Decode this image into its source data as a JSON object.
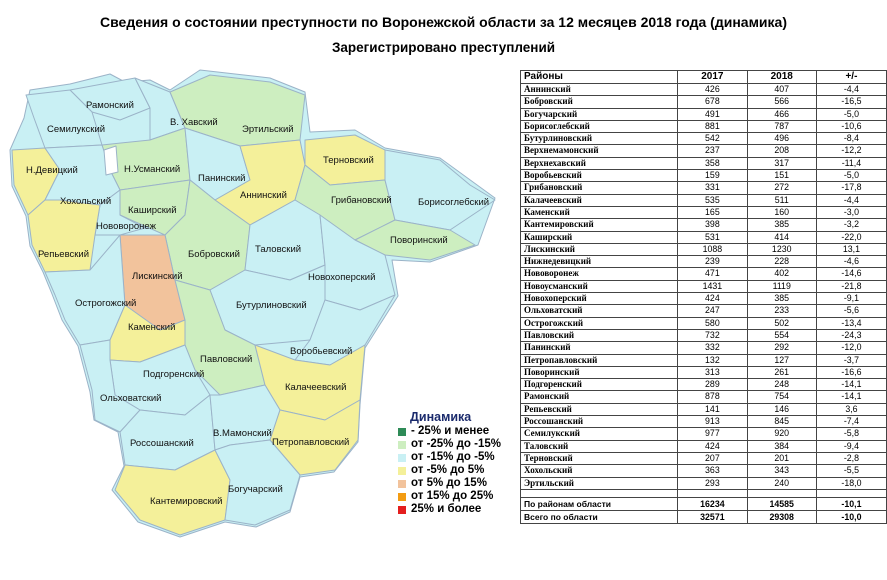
{
  "title": "Сведения о состоянии преступности по Воронежской области  за 12 месяцев 2018 года (динамика)",
  "subtitle": "Зарегистрировано преступлений",
  "colors": {
    "dark_green": "#2e8b57",
    "light_green": "#cdeec0",
    "light_blue": "#c9f0f4",
    "yellow": "#f4f09a",
    "peach": "#f2c39c",
    "orange": "#f39c12",
    "red": "#e41e1e",
    "white": "#ffffff",
    "border": "#9bb3c8"
  },
  "map": {
    "districts": [
      {
        "name": "Рамонский",
        "category": "light_blue"
      },
      {
        "name": "Семилукский",
        "category": "light_blue"
      },
      {
        "name": "В. Хавский",
        "category": "light_blue"
      },
      {
        "name": "Эртильский",
        "category": "light_green"
      },
      {
        "name": "Н.Девицкий",
        "category": "yellow"
      },
      {
        "name": "Н.Усманский",
        "category": "light_green"
      },
      {
        "name": "Терновский",
        "category": "yellow"
      },
      {
        "name": "Панинский",
        "category": "light_blue"
      },
      {
        "name": "Хохольский",
        "category": "light_blue"
      },
      {
        "name": "Аннинский",
        "category": "yellow"
      },
      {
        "name": "Грибановский",
        "category": "light_green"
      },
      {
        "name": "Борисоглебский",
        "category": "light_blue"
      },
      {
        "name": "Каширский",
        "category": "light_green"
      },
      {
        "name": "Нововоронеж",
        "category": "light_blue"
      },
      {
        "name": "Репьевский",
        "category": "yellow"
      },
      {
        "name": "Бобровский",
        "category": "light_green"
      },
      {
        "name": "Таловский",
        "category": "light_blue"
      },
      {
        "name": "Поворинский",
        "category": "light_green"
      },
      {
        "name": "Лискинский",
        "category": "peach"
      },
      {
        "name": "Новохоперский",
        "category": "light_blue"
      },
      {
        "name": "Острогожский",
        "category": "light_blue"
      },
      {
        "name": "Бутурлиновский",
        "category": "light_blue"
      },
      {
        "name": "Каменский",
        "category": "yellow"
      },
      {
        "name": "Павловский",
        "category": "light_green"
      },
      {
        "name": "Воробьевский",
        "category": "light_blue"
      },
      {
        "name": "Подгоренский",
        "category": "light_blue"
      },
      {
        "name": "Ольховатский",
        "category": "light_blue"
      },
      {
        "name": "Калачеевский",
        "category": "yellow"
      },
      {
        "name": "Россошанский",
        "category": "light_blue"
      },
      {
        "name": "В.Мамонский",
        "category": "light_blue"
      },
      {
        "name": "Петропавловский",
        "category": "yellow"
      },
      {
        "name": "Кантемировский",
        "category": "yellow"
      },
      {
        "name": "Богучарский",
        "category": "light_blue"
      }
    ]
  },
  "legend": {
    "title": "Динамика",
    "items": [
      {
        "label": "- 25% и менее",
        "color": "#2e8b57"
      },
      {
        "label": "от -25% до -15%",
        "color": "#cdeec0"
      },
      {
        "label": "от -15% до -5%",
        "color": "#c9f0f4"
      },
      {
        "label": "от -5% до 5%",
        "color": "#f4f09a"
      },
      {
        "label": "от 5% до 15%",
        "color": "#f2c39c"
      },
      {
        "label": "от 15% до 25%",
        "color": "#f39c12"
      },
      {
        "label": "25% и более",
        "color": "#e41e1e"
      }
    ]
  },
  "table": {
    "headers": [
      "Районы",
      "2017",
      "2018",
      "+/-"
    ],
    "rows": [
      [
        "Аннинский",
        "426",
        "407",
        "-4,4"
      ],
      [
        "Бобровский",
        "678",
        "566",
        "-16,5"
      ],
      [
        "Богучарский",
        "491",
        "466",
        "-5,0"
      ],
      [
        "Борисоглебский",
        "881",
        "787",
        "-10,6"
      ],
      [
        "Бутурлиновский",
        "542",
        "496",
        "-8,4"
      ],
      [
        "Верхнемамонский",
        "237",
        "208",
        "-12,2"
      ],
      [
        "Верхнехавский",
        "358",
        "317",
        "-11,4"
      ],
      [
        "Воробьевский",
        "159",
        "151",
        "-5,0"
      ],
      [
        "Грибановский",
        "331",
        "272",
        "-17,8"
      ],
      [
        "Калачеевский",
        "535",
        "511",
        "-4,4"
      ],
      [
        "Каменский",
        "165",
        "160",
        "-3,0"
      ],
      [
        "Кантемировский",
        "398",
        "385",
        "-3,2"
      ],
      [
        "Каширский",
        "531",
        "414",
        "-22,0"
      ],
      [
        "Лискинский",
        "1088",
        "1230",
        "13,1"
      ],
      [
        "Нижнедевицкий",
        "239",
        "228",
        "-4,6"
      ],
      [
        "Нововоронеж",
        "471",
        "402",
        "-14,6"
      ],
      [
        "Новоусманский",
        "1431",
        "1119",
        "-21,8"
      ],
      [
        "Новохоперский",
        "424",
        "385",
        "-9,1"
      ],
      [
        "Ольховатский",
        "247",
        "233",
        "-5,6"
      ],
      [
        "Острогожский",
        "580",
        "502",
        "-13,4"
      ],
      [
        "Павловский",
        "732",
        "554",
        "-24,3"
      ],
      [
        "Панинский",
        "332",
        "292",
        "-12,0"
      ],
      [
        "Петропавловский",
        "132",
        "127",
        "-3,7"
      ],
      [
        "Поворинский",
        "313",
        "261",
        "-16,6"
      ],
      [
        "Подгоренский",
        "289",
        "248",
        "-14,1"
      ],
      [
        "Рамонский",
        "878",
        "754",
        "-14,1"
      ],
      [
        "Репьевский",
        "141",
        "146",
        "3,6"
      ],
      [
        "Россошанский",
        "913",
        "845",
        "-7,4"
      ],
      [
        "Семилукский",
        "977",
        "920",
        "-5,8"
      ],
      [
        "Таловский",
        "424",
        "384",
        "-9,4"
      ],
      [
        "Терновский",
        "207",
        "201",
        "-2,8"
      ],
      [
        "Хохольский",
        "363",
        "343",
        "-5,5"
      ],
      [
        "Эртильский",
        "293",
        "240",
        "-18,0"
      ]
    ],
    "totals": [
      [
        "По районам области",
        "16234",
        "14585",
        "-10,1"
      ],
      [
        "Всего по области",
        "32571",
        "29308",
        "-10,0"
      ]
    ]
  }
}
